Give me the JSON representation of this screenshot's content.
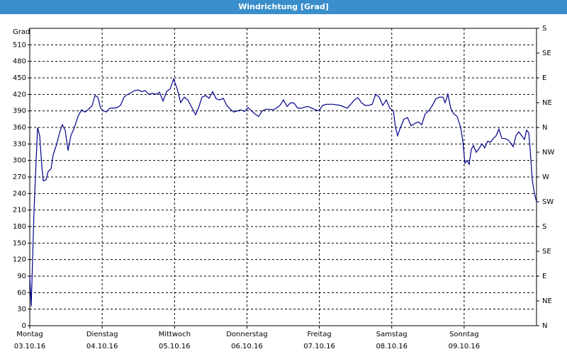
{
  "chart_data": {
    "type": "line",
    "title": "Windrichtung [Grad]",
    "y_label": "Grad",
    "color": "#00008b",
    "grid": true,
    "xlim": [
      0,
      7
    ],
    "xticks": [
      {
        "value": 0,
        "label": "Montag"
      },
      {
        "value": 1,
        "label": "Dienstag"
      },
      {
        "value": 2,
        "label": "Mittwoch"
      },
      {
        "value": 3,
        "label": "Donnerstag"
      },
      {
        "value": 4,
        "label": "Freitag"
      },
      {
        "value": 5,
        "label": "Samstag"
      },
      {
        "value": 6,
        "label": "Sonntag"
      }
    ],
    "xtick_dates": [
      "03.10.16",
      "04.10.16",
      "05.10.16",
      "06.10.16",
      "07.10.16",
      "08.10.16",
      "09.10.16"
    ],
    "ylim": [
      0,
      540
    ],
    "yticks": [
      0,
      30,
      60,
      90,
      120,
      150,
      180,
      210,
      240,
      270,
      300,
      330,
      360,
      390,
      420,
      450,
      480,
      510
    ],
    "y2lim": [
      0,
      540
    ],
    "y2ticks": [
      {
        "value": 0,
        "label": "N"
      },
      {
        "value": 45,
        "label": "NE"
      },
      {
        "value": 90,
        "label": "E"
      },
      {
        "value": 135,
        "label": "SE"
      },
      {
        "value": 180,
        "label": "S"
      },
      {
        "value": 225,
        "label": "SW"
      },
      {
        "value": 270,
        "label": "W"
      },
      {
        "value": 315,
        "label": "NW"
      },
      {
        "value": 360,
        "label": "N"
      },
      {
        "value": 405,
        "label": "NE"
      },
      {
        "value": 450,
        "label": "E"
      },
      {
        "value": 495,
        "label": "SE"
      },
      {
        "value": 540,
        "label": "S"
      }
    ],
    "x": [
      0,
      0.02,
      0.039,
      0.059,
      0.088,
      0.108,
      0.137,
      0.166,
      0.186,
      0.225,
      0.254,
      0.294,
      0.323,
      0.372,
      0.411,
      0.45,
      0.489,
      0.529,
      0.568,
      0.617,
      0.666,
      0.715,
      0.764,
      0.813,
      0.862,
      0.901,
      0.94,
      0.979,
      1.018,
      1.057,
      1.106,
      1.155,
      1.204,
      1.253,
      1.302,
      1.351,
      1.4,
      1.449,
      1.498,
      1.547,
      1.596,
      1.645,
      1.694,
      1.743,
      1.792,
      1.841,
      1.89,
      1.939,
      1.987,
      2.036,
      2.085,
      2.134,
      2.183,
      2.232,
      2.291,
      2.33,
      2.379,
      2.428,
      2.477,
      2.526,
      2.575,
      2.624,
      2.673,
      2.722,
      2.771,
      2.82,
      2.869,
      2.918,
      2.967,
      3.016,
      3.064,
      3.113,
      3.162,
      3.211,
      3.26,
      3.309,
      3.358,
      3.407,
      3.456,
      3.505,
      3.554,
      3.603,
      3.652,
      3.701,
      3.75,
      3.799,
      3.848,
      3.897,
      3.946,
      3.995,
      4.044,
      4.092,
      4.19,
      4.288,
      4.386,
      4.435,
      4.484,
      4.533,
      4.582,
      4.631,
      4.68,
      4.729,
      4.778,
      4.827,
      4.876,
      4.925,
      4.974,
      5.023,
      5.052,
      5.081,
      5.12,
      5.169,
      5.218,
      5.267,
      5.316,
      5.365,
      5.414,
      5.463,
      5.512,
      5.561,
      5.61,
      5.659,
      5.708,
      5.737,
      5.776,
      5.815,
      5.854,
      5.903,
      5.952,
      5.982,
      6.011,
      6.04,
      6.07,
      6.099,
      6.128,
      6.168,
      6.207,
      6.246,
      6.285,
      6.325,
      6.364,
      6.403,
      6.442,
      6.481,
      6.521,
      6.56,
      6.599,
      6.638,
      6.677,
      6.716,
      6.755,
      6.795,
      6.834,
      6.863,
      6.893,
      6.912,
      6.941,
      6.971,
      7
    ],
    "values": [
      90,
      35,
      120,
      210,
      300,
      360,
      345,
      290,
      263,
      265,
      280,
      285,
      310,
      330,
      350,
      365,
      355,
      318,
      345,
      360,
      380,
      392,
      388,
      393,
      400,
      418,
      415,
      395,
      390,
      388,
      395,
      395,
      396,
      400,
      415,
      420,
      423,
      427,
      428,
      425,
      427,
      420,
      422,
      420,
      424,
      408,
      425,
      430,
      448,
      430,
      405,
      415,
      410,
      398,
      383,
      395,
      415,
      418,
      413,
      425,
      412,
      410,
      413,
      400,
      393,
      388,
      390,
      392,
      389,
      396,
      390,
      384,
      380,
      390,
      393,
      393,
      392,
      395,
      400,
      410,
      398,
      405,
      404,
      395,
      395,
      397,
      398,
      395,
      392,
      390,
      400,
      402,
      402,
      400,
      395,
      402,
      410,
      414,
      405,
      400,
      400,
      402,
      420,
      415,
      400,
      410,
      395,
      390,
      360,
      345,
      360,
      375,
      378,
      363,
      367,
      370,
      365,
      385,
      390,
      400,
      412,
      415,
      415,
      405,
      420,
      395,
      385,
      380,
      360,
      335,
      295,
      300,
      293,
      320,
      327,
      315,
      322,
      330,
      323,
      335,
      333,
      340,
      345,
      357,
      340,
      340,
      338,
      333,
      325,
      345,
      352,
      345,
      338,
      355,
      350,
      320,
      265,
      240,
      225
    ]
  }
}
